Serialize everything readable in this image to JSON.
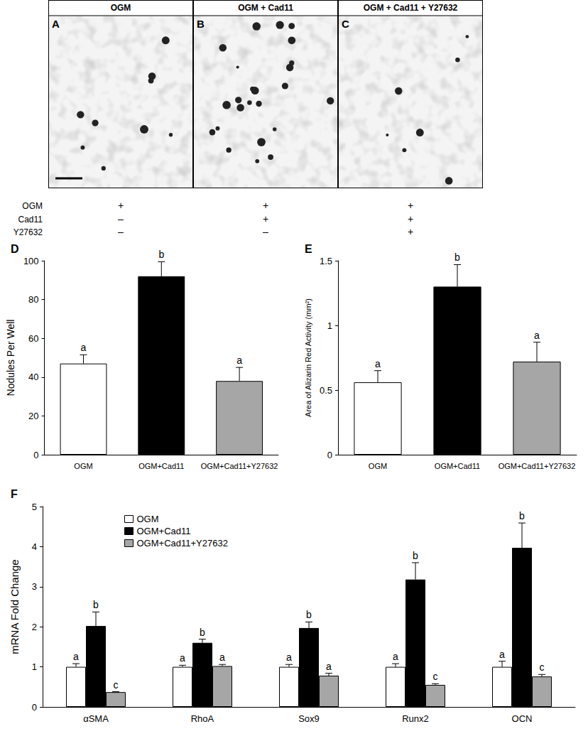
{
  "figure": {
    "images": [
      {
        "letter": "A",
        "title": "OGM"
      },
      {
        "letter": "B",
        "title": "OGM + Cad11"
      },
      {
        "letter": "C",
        "title": "OGM + Cad11 + Y27632"
      }
    ],
    "treatments": [
      {
        "label": "OGM",
        "marks": [
          "+",
          "+",
          "+"
        ]
      },
      {
        "label": "Cad11",
        "marks": [
          "–",
          "+",
          "+"
        ]
      },
      {
        "label": "Y27632",
        "marks": [
          "–",
          "–",
          "+"
        ]
      }
    ]
  },
  "chart_data": [
    {
      "type": "bar",
      "title": "D",
      "categories": [
        "OGM",
        "OGM+Cad11",
        "OGM+Cad11+Y27632"
      ],
      "values": [
        47,
        92,
        38
      ],
      "errors": [
        4.5,
        7.5,
        7
      ],
      "significance": [
        "a",
        "b",
        "a"
      ],
      "colors": [
        "#ffffff",
        "#000000",
        "#a6a6a6"
      ],
      "ylabel": "Nodules Per Well",
      "ylim": [
        0,
        100
      ],
      "yticks": [
        0,
        20,
        40,
        60,
        80,
        100
      ],
      "grid": false
    },
    {
      "type": "bar",
      "title": "E",
      "categories": [
        "OGM",
        "OGM+Cad11",
        "OGM+Cad11+Y27632"
      ],
      "values": [
        0.56,
        1.3,
        0.72
      ],
      "errors": [
        0.09,
        0.17,
        0.15
      ],
      "significance": [
        "a",
        "b",
        "a"
      ],
      "colors": [
        "#ffffff",
        "#000000",
        "#a6a6a6"
      ],
      "ylabel": "Area of Alizarin Red Activity (mm²)",
      "ylim": [
        0,
        1.5
      ],
      "yticks": [
        0,
        0.5,
        1,
        1.5
      ],
      "grid": false
    },
    {
      "type": "bar",
      "title": "F",
      "categories": [
        "αSMA",
        "RhoA",
        "Sox9",
        "Runx2",
        "OCN"
      ],
      "series": [
        {
          "name": "OGM",
          "color": "#ffffff",
          "values": [
            1,
            1,
            1,
            1,
            1
          ],
          "errors": [
            0.08,
            0.04,
            0.06,
            0.08,
            0.14
          ],
          "significance": [
            "a",
            "a",
            "a",
            "a",
            "a"
          ]
        },
        {
          "name": "OGM+Cad11",
          "color": "#000000",
          "values": [
            2.02,
            1.6,
            1.97,
            3.18,
            3.97
          ],
          "errors": [
            0.35,
            0.09,
            0.15,
            0.42,
            0.62
          ],
          "significance": [
            "b",
            "b",
            "b",
            "b",
            "b"
          ]
        },
        {
          "name": "OGM+Cad11+Y27632",
          "color": "#a6a6a6",
          "values": [
            0.37,
            1.02,
            0.78,
            0.55,
            0.76
          ],
          "errors": [
            0.01,
            0.04,
            0.06,
            0.03,
            0.05
          ],
          "significance": [
            "c",
            "a",
            "a",
            "c",
            "c"
          ]
        }
      ],
      "ylabel": "mRNA Fold Change",
      "ylim": [
        0,
        5
      ],
      "yticks": [
        0,
        1,
        2,
        3,
        4,
        5
      ],
      "grid": false,
      "legend": "upper left"
    }
  ]
}
